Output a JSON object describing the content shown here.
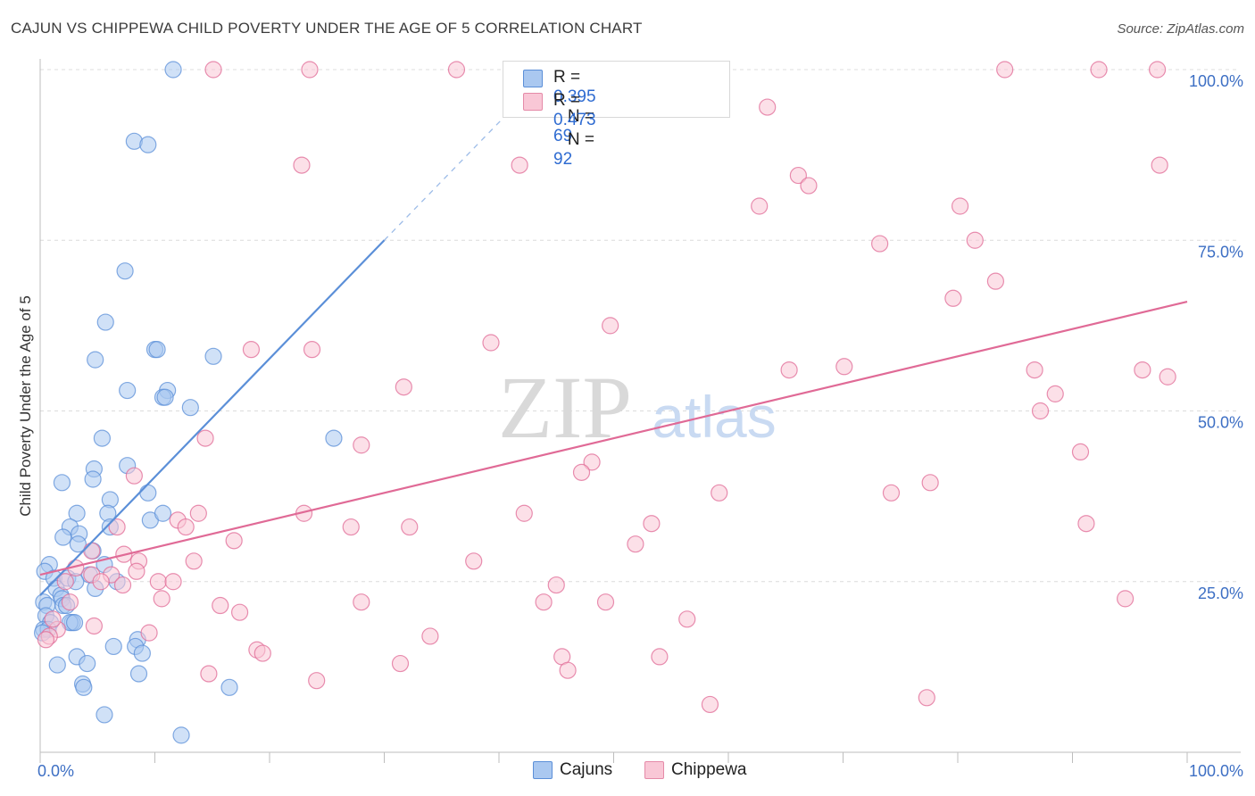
{
  "title": "CAJUN VS CHIPPEWA CHILD POVERTY UNDER THE AGE OF 5 CORRELATION CHART",
  "source": "Source: ZipAtlas.com",
  "watermark": {
    "zip": "ZIP",
    "atlas": "atlas"
  },
  "legend_top": [
    {
      "r_label": "R =",
      "r": "0.395",
      "n_label": "N =",
      "n": "69",
      "color": "#aac8f0",
      "edge": "#5b8fd8"
    },
    {
      "r_label": "R =",
      "r": "0.473",
      "n_label": "N =",
      "n": "92",
      "color": "#f9c7d6",
      "edge": "#e58aa8"
    }
  ],
  "legend_bottom": [
    {
      "label": "Cajuns",
      "color": "#aac8f0",
      "edge": "#5b8fd8"
    },
    {
      "label": "Chippewa",
      "color": "#f9c7d6",
      "edge": "#e58aa8"
    }
  ],
  "chart_data": {
    "type": "scatter",
    "title": "CAJUN VS CHIPPEWA CHILD POVERTY UNDER THE AGE OF 5 CORRELATION CHART",
    "xlabel": "",
    "ylabel": "Child Poverty Under the Age of 5",
    "xlim": [
      0,
      100
    ],
    "ylim": [
      0,
      100
    ],
    "x_tick_labels": [
      "0.0%",
      "100.0%"
    ],
    "y_ticks": [
      25,
      50,
      75,
      100
    ],
    "y_tick_labels": [
      "25.0%",
      "50.0%",
      "75.0%",
      "100.0%"
    ],
    "series": [
      {
        "name": "Cajuns",
        "color": "#5b8fd8",
        "fill": "#aac8f0",
        "trend": {
          "x0": 0,
          "y0": 23,
          "x1": 30,
          "y1": 75,
          "dash_to_x": 41,
          "dash_to_y": 94
        },
        "points": [
          [
            11.6,
            100
          ],
          [
            8.2,
            89.5
          ],
          [
            9.4,
            89
          ],
          [
            7.4,
            70.5
          ],
          [
            5.7,
            63
          ],
          [
            4.8,
            57.5
          ],
          [
            10,
            59
          ],
          [
            10.2,
            59
          ],
          [
            15.1,
            58
          ],
          [
            7.6,
            53
          ],
          [
            11.1,
            53
          ],
          [
            10.7,
            52
          ],
          [
            10.9,
            52
          ],
          [
            13.1,
            50.5
          ],
          [
            25.6,
            46
          ],
          [
            5.4,
            46
          ],
          [
            7.6,
            42
          ],
          [
            4.7,
            41.5
          ],
          [
            4.6,
            40
          ],
          [
            1.9,
            39.5
          ],
          [
            9.4,
            38
          ],
          [
            6.1,
            37
          ],
          [
            5.9,
            35
          ],
          [
            3.2,
            35
          ],
          [
            9.6,
            34
          ],
          [
            10.7,
            35
          ],
          [
            2.6,
            33
          ],
          [
            6.1,
            33
          ],
          [
            3.4,
            32
          ],
          [
            2,
            31.5
          ],
          [
            3.3,
            30.5
          ],
          [
            4.6,
            29.5
          ],
          [
            0.8,
            27.5
          ],
          [
            5.6,
            27.5
          ],
          [
            0.4,
            26.5
          ],
          [
            4.3,
            26
          ],
          [
            1.2,
            25.5
          ],
          [
            2.4,
            25.5
          ],
          [
            3.1,
            25
          ],
          [
            6.7,
            25
          ],
          [
            1.4,
            24
          ],
          [
            4.8,
            24
          ],
          [
            1.8,
            23
          ],
          [
            1.9,
            22.5
          ],
          [
            0.3,
            22
          ],
          [
            0.6,
            21.5
          ],
          [
            2,
            21.5
          ],
          [
            2.3,
            21.5
          ],
          [
            0.5,
            20
          ],
          [
            0.9,
            19
          ],
          [
            2.8,
            19
          ],
          [
            2.6,
            19
          ],
          [
            3,
            19
          ],
          [
            0.3,
            18
          ],
          [
            0.7,
            18
          ],
          [
            8.5,
            16.5
          ],
          [
            6.4,
            15.5
          ],
          [
            8.3,
            15.5
          ],
          [
            8.9,
            14.5
          ],
          [
            3.2,
            14
          ],
          [
            1.5,
            12.8
          ],
          [
            4.1,
            13
          ],
          [
            8.6,
            11.5
          ],
          [
            3.7,
            10
          ],
          [
            3.8,
            9.5
          ],
          [
            16.5,
            9.5
          ],
          [
            5.6,
            5.5
          ],
          [
            12.3,
            2.5
          ],
          [
            0.2,
            17.5
          ]
        ]
      },
      {
        "name": "Chippewa",
        "color": "#e06a96",
        "fill": "#f9c7d6",
        "trend": {
          "x0": 0,
          "y0": 26,
          "x1": 100,
          "y1": 66
        },
        "points": [
          [
            15.1,
            100
          ],
          [
            23.5,
            100
          ],
          [
            36.3,
            100
          ],
          [
            84.1,
            100
          ],
          [
            92.3,
            100
          ],
          [
            97.4,
            100
          ],
          [
            63.4,
            94.5
          ],
          [
            22.8,
            86
          ],
          [
            41.8,
            86
          ],
          [
            97.6,
            86
          ],
          [
            66.1,
            84.5
          ],
          [
            67,
            83
          ],
          [
            62.7,
            80
          ],
          [
            80.2,
            80
          ],
          [
            73.2,
            74.5
          ],
          [
            81.5,
            75
          ],
          [
            83.3,
            69
          ],
          [
            79.6,
            66.5
          ],
          [
            49.7,
            62.5
          ],
          [
            39.3,
            60
          ],
          [
            18.4,
            59
          ],
          [
            23.7,
            59
          ],
          [
            65.3,
            56
          ],
          [
            70.1,
            56.5
          ],
          [
            86.7,
            56
          ],
          [
            96.1,
            56
          ],
          [
            98.3,
            55
          ],
          [
            31.7,
            53.5
          ],
          [
            88.5,
            52.5
          ],
          [
            87.2,
            50
          ],
          [
            14.4,
            46
          ],
          [
            28,
            45
          ],
          [
            90.7,
            44
          ],
          [
            48.1,
            42.5
          ],
          [
            47.2,
            41
          ],
          [
            8.2,
            40.5
          ],
          [
            59.2,
            38
          ],
          [
            74.2,
            38
          ],
          [
            77.6,
            39.5
          ],
          [
            13.8,
            35
          ],
          [
            23,
            35
          ],
          [
            42.2,
            35
          ],
          [
            12,
            34
          ],
          [
            12.7,
            33
          ],
          [
            27.1,
            33
          ],
          [
            32.2,
            33
          ],
          [
            53.3,
            33.5
          ],
          [
            91.2,
            33.5
          ],
          [
            6.7,
            33
          ],
          [
            16.9,
            31
          ],
          [
            51.9,
            30.5
          ],
          [
            7.3,
            29
          ],
          [
            4.5,
            29.5
          ],
          [
            8.6,
            28
          ],
          [
            13.4,
            28
          ],
          [
            37.8,
            28
          ],
          [
            3.1,
            27
          ],
          [
            4.5,
            26
          ],
          [
            6.2,
            26
          ],
          [
            8.4,
            26.5
          ],
          [
            10.3,
            25
          ],
          [
            11.6,
            25
          ],
          [
            2.2,
            25
          ],
          [
            5.3,
            25
          ],
          [
            45,
            24.5
          ],
          [
            7.2,
            24.5
          ],
          [
            94.6,
            22.5
          ],
          [
            10.6,
            22.5
          ],
          [
            28,
            22
          ],
          [
            43.9,
            22
          ],
          [
            49.3,
            22
          ],
          [
            15.7,
            21.5
          ],
          [
            17.4,
            20.5
          ],
          [
            56.4,
            19.5
          ],
          [
            4.7,
            18.5
          ],
          [
            9.5,
            17.5
          ],
          [
            34,
            17
          ],
          [
            1.5,
            18
          ],
          [
            0.8,
            17
          ],
          [
            0.5,
            16.5
          ],
          [
            18.9,
            15
          ],
          [
            19.4,
            14.5
          ],
          [
            45.5,
            14
          ],
          [
            31.4,
            13
          ],
          [
            54,
            14
          ],
          [
            46,
            12
          ],
          [
            14.7,
            11.5
          ],
          [
            24.1,
            10.5
          ],
          [
            58.4,
            7
          ],
          [
            77.3,
            8
          ],
          [
            2.6,
            22
          ],
          [
            1.1,
            19.5
          ]
        ]
      }
    ]
  }
}
